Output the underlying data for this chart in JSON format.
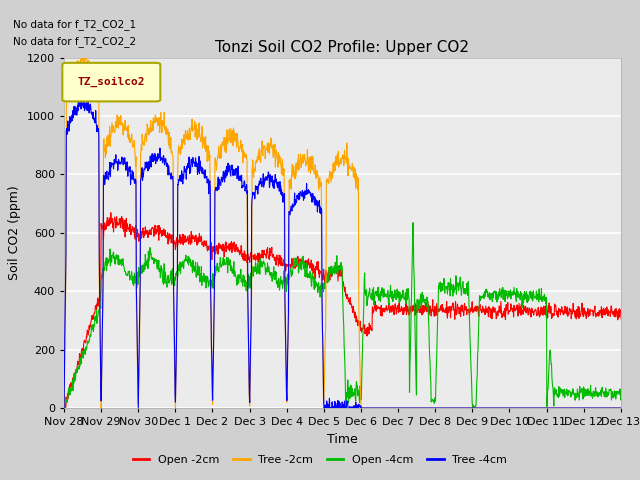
{
  "title": "Tonzi Soil CO2 Profile: Upper CO2",
  "ylabel": "Soil CO2 (ppm)",
  "xlabel": "Time",
  "ylim": [
    0,
    1200
  ],
  "legend_label": "TZ_soilco2",
  "no_data_text": [
    "No data for f_T2_CO2_1",
    "No data for f_T2_CO2_2"
  ],
  "colors": {
    "open_2cm": "#ff0000",
    "tree_2cm": "#ffa500",
    "open_4cm": "#00bb00",
    "tree_4cm": "#0000ff"
  },
  "legend_entries": [
    "Open -2cm",
    "Tree -2cm",
    "Open -4cm",
    "Tree -4cm"
  ],
  "x_ticks": [
    "Nov 28",
    "Nov 29",
    "Nov 30",
    "Dec 1",
    "Dec 2",
    "Dec 3",
    "Dec 4",
    "Dec 5",
    "Dec 6",
    "Dec 7",
    "Dec 8",
    "Dec 9",
    "Dec 10",
    "Dec 11",
    "Dec 12",
    "Dec 13"
  ],
  "bg_color": "#e8e8e8",
  "plot_bg": "#ebebeb"
}
